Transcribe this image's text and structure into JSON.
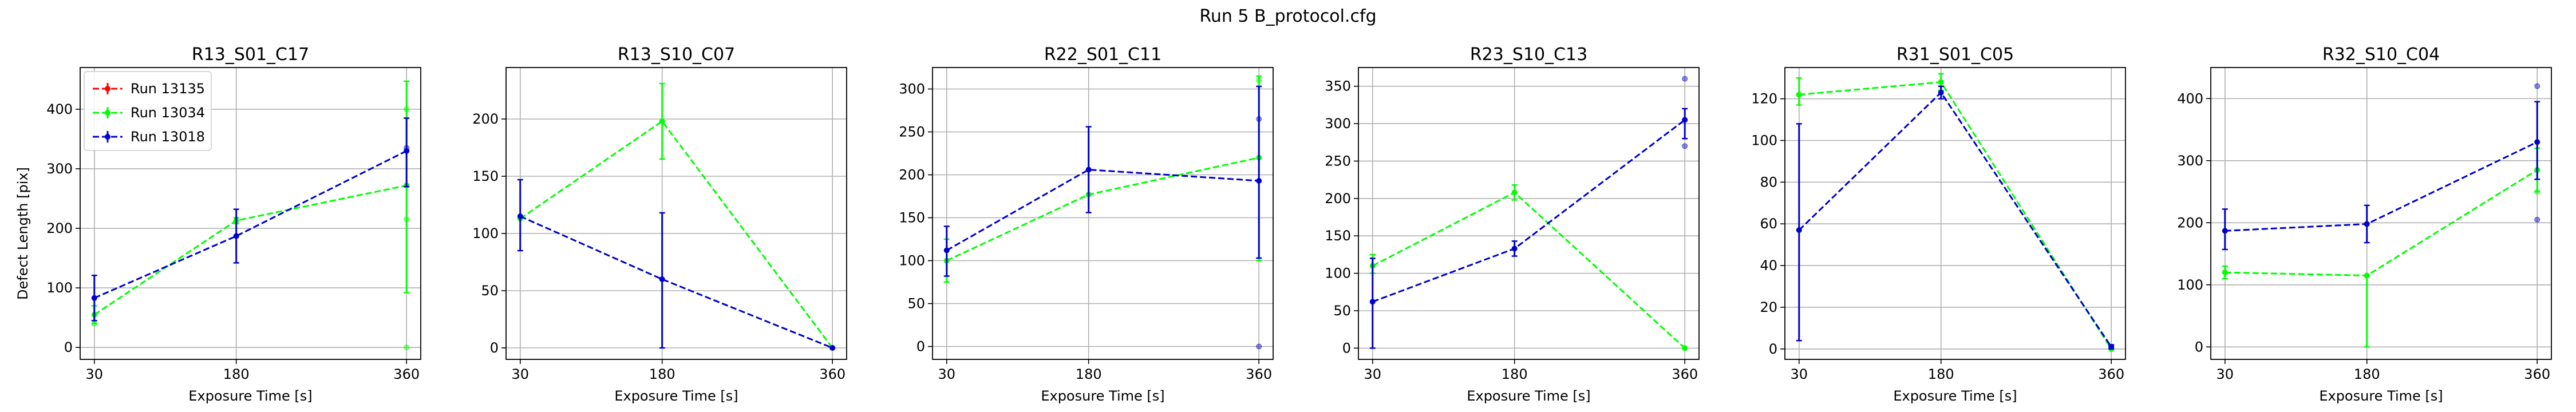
{
  "figure": {
    "title": "Run 5 B_protocol.cfg",
    "xlabel": "Exposure Time [s]",
    "ylabel": "Defect Length [pix]"
  },
  "legend": {
    "placement": "upper-left of first panel",
    "entries": [
      {
        "label": "Run 13135",
        "color": "#ff0000"
      },
      {
        "label": "Run 13034",
        "color": "#00ff00"
      },
      {
        "label": "Run 13018",
        "color": "#0000cc"
      }
    ]
  },
  "chart_data": [
    {
      "type": "line",
      "title": "R13_S01_C17",
      "xlabel": "Exposure Time [s]",
      "ylabel": "Defect Length [pix]",
      "x": [
        30,
        180,
        360
      ],
      "xlim": [
        15,
        375
      ],
      "ylim": [
        -20,
        470
      ],
      "yticks": [
        0,
        100,
        200,
        300,
        400
      ],
      "grid": true,
      "series": [
        {
          "name": "Run 13034",
          "color": "#00ff00",
          "values": [
            55,
            213,
            272
          ],
          "err_low": [
            15,
            5,
            180
          ],
          "err_high": [
            15,
            5,
            175
          ],
          "outliers": [
            [
              30,
              40
            ],
            [
              360,
              0
            ],
            [
              360,
              215
            ],
            [
              360,
              400
            ]
          ]
        },
        {
          "name": "Run 13018",
          "color": "#0000cc",
          "values": [
            83,
            187,
            330
          ],
          "err_low": [
            38,
            45,
            60
          ],
          "err_high": [
            38,
            45,
            55
          ],
          "outliers": [
            [
              360,
              335
            ]
          ]
        }
      ]
    },
    {
      "type": "line",
      "title": "R13_S10_C07",
      "xlabel": "Exposure Time [s]",
      "x": [
        30,
        180,
        360
      ],
      "xlim": [
        15,
        375
      ],
      "ylim": [
        -10,
        245
      ],
      "yticks": [
        0,
        50,
        100,
        150,
        200
      ],
      "grid": true,
      "series": [
        {
          "name": "Run 13034",
          "color": "#00ff00",
          "values": [
            113,
            198,
            0
          ],
          "err_low": [
            0,
            33,
            0
          ],
          "err_high": [
            0,
            33,
            0
          ],
          "outliers": []
        },
        {
          "name": "Run 13018",
          "color": "#0000cc",
          "values": [
            115,
            60,
            0
          ],
          "err_low": [
            30,
            60,
            0
          ],
          "err_high": [
            32,
            58,
            0
          ],
          "outliers": []
        }
      ]
    },
    {
      "type": "line",
      "title": "R22_S01_C11",
      "xlabel": "Exposure Time [s]",
      "x": [
        30,
        180,
        360
      ],
      "xlim": [
        15,
        375
      ],
      "ylim": [
        -15,
        325
      ],
      "yticks": [
        0,
        50,
        100,
        150,
        200,
        250,
        300
      ],
      "grid": true,
      "series": [
        {
          "name": "Run 13034",
          "color": "#00ff00",
          "values": [
            100,
            177,
            220
          ],
          "err_low": [
            25,
            0,
            120
          ],
          "err_high": [
            25,
            0,
            95
          ],
          "outliers": [
            [
              360,
              310
            ]
          ]
        },
        {
          "name": "Run 13018",
          "color": "#0000cc",
          "values": [
            112,
            206,
            193
          ],
          "err_low": [
            30,
            50,
            90
          ],
          "err_high": [
            28,
            50,
            110
          ],
          "outliers": [
            [
              360,
              0
            ],
            [
              360,
              265
            ]
          ]
        }
      ]
    },
    {
      "type": "line",
      "title": "R23_S10_C13",
      "xlabel": "Exposure Time [s]",
      "x": [
        30,
        180,
        360
      ],
      "xlim": [
        15,
        375
      ],
      "ylim": [
        -15,
        375
      ],
      "yticks": [
        0,
        50,
        100,
        150,
        200,
        250,
        300,
        350
      ],
      "grid": true,
      "series": [
        {
          "name": "Run 13034",
          "color": "#00ff00",
          "values": [
            110,
            208,
            0
          ],
          "err_low": [
            10,
            10,
            0
          ],
          "err_high": [
            15,
            10,
            0
          ],
          "outliers": []
        },
        {
          "name": "Run 13018",
          "color": "#0000cc",
          "values": [
            62,
            133,
            305
          ],
          "err_low": [
            62,
            10,
            25
          ],
          "err_high": [
            58,
            10,
            15
          ],
          "outliers": [
            [
              360,
              360
            ],
            [
              360,
              270
            ]
          ]
        }
      ]
    },
    {
      "type": "line",
      "title": "R31_S01_C05",
      "xlabel": "Exposure Time [s]",
      "x": [
        30,
        180,
        360
      ],
      "xlim": [
        15,
        375
      ],
      "ylim": [
        -5,
        135
      ],
      "yticks": [
        0,
        20,
        40,
        60,
        80,
        100,
        120
      ],
      "grid": true,
      "series": [
        {
          "name": "Run 13034",
          "color": "#00ff00",
          "values": [
            122,
            128,
            0
          ],
          "err_low": [
            5,
            4,
            0
          ],
          "err_high": [
            8,
            4,
            0
          ],
          "outliers": []
        },
        {
          "name": "Run 13018",
          "color": "#0000cc",
          "values": [
            57,
            123,
            1
          ],
          "err_low": [
            53,
            3,
            1
          ],
          "err_high": [
            51,
            3,
            1
          ],
          "outliers": []
        }
      ]
    },
    {
      "type": "line",
      "title": "R32_S10_C04",
      "xlabel": "Exposure Time [s]",
      "x": [
        30,
        180,
        360
      ],
      "xlim": [
        15,
        375
      ],
      "ylim": [
        -20,
        450
      ],
      "yticks": [
        0,
        100,
        200,
        300,
        400
      ],
      "grid": true,
      "series": [
        {
          "name": "Run 13034",
          "color": "#00ff00",
          "values": [
            120,
            115,
            285
          ],
          "err_low": [
            10,
            115,
            35
          ],
          "err_high": [
            10,
            0,
            35
          ],
          "outliers": [
            [
              360,
              250
            ]
          ]
        },
        {
          "name": "Run 13018",
          "color": "#0000cc",
          "values": [
            187,
            198,
            330
          ],
          "err_low": [
            30,
            30,
            60
          ],
          "err_high": [
            35,
            30,
            65
          ],
          "outliers": [
            [
              360,
              205
            ],
            [
              360,
              420
            ]
          ]
        }
      ]
    }
  ]
}
